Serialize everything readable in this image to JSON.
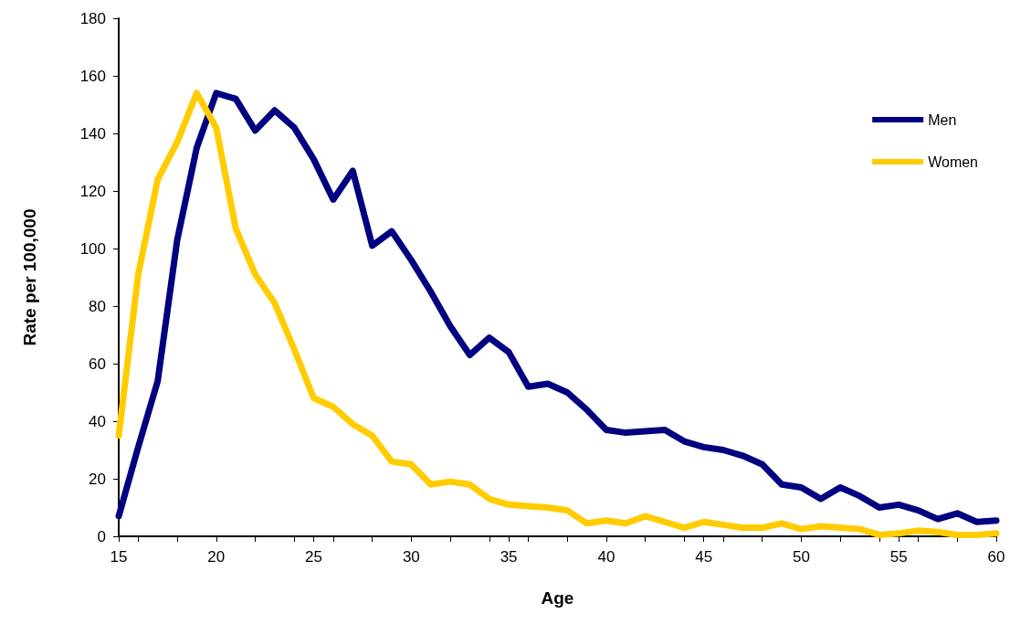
{
  "chart_data": {
    "type": "line",
    "xlabel": "Age",
    "ylabel": "Rate per 100,000",
    "x": [
      15,
      16,
      17,
      18,
      19,
      20,
      21,
      22,
      23,
      24,
      25,
      26,
      27,
      28,
      29,
      30,
      31,
      32,
      33,
      34,
      35,
      36,
      37,
      38,
      39,
      40,
      41,
      42,
      43,
      44,
      45,
      46,
      47,
      48,
      49,
      50,
      51,
      52,
      53,
      54,
      55,
      56,
      57,
      58,
      59,
      60
    ],
    "series": [
      {
        "name": "Men",
        "color": "#000080",
        "values": [
          7,
          31,
          54,
          103,
          135,
          154,
          152,
          141,
          148,
          142,
          131,
          117,
          127,
          101,
          106,
          96,
          85,
          73,
          63,
          69,
          64,
          52,
          53,
          50,
          44,
          37,
          36,
          36.5,
          37,
          33,
          31,
          30,
          28,
          25,
          18,
          17,
          13,
          17,
          14,
          10,
          11,
          9,
          6,
          8,
          5,
          5.5
        ]
      },
      {
        "name": "Women",
        "color": "#ffcc00",
        "values": [
          35,
          91,
          124,
          137,
          154,
          142,
          107,
          91,
          81,
          65,
          48,
          45,
          39,
          35,
          26,
          25,
          18,
          19,
          18,
          13,
          11,
          10.5,
          10,
          9,
          4.5,
          5.5,
          4.5,
          7,
          5,
          3,
          5,
          4,
          3,
          3,
          4.5,
          2.5,
          3.5,
          3,
          2.5,
          0.5,
          1,
          2,
          1.5,
          0.5,
          0.5,
          1
        ]
      }
    ],
    "xlim": [
      15,
      60
    ],
    "xticks": [
      15,
      20,
      25,
      30,
      35,
      40,
      45,
      50,
      55,
      60
    ],
    "ylim": [
      0,
      180
    ],
    "yticks": [
      0,
      20,
      40,
      60,
      80,
      100,
      120,
      140,
      160,
      180
    ],
    "grid": false,
    "legend": "top right",
    "marker": "none",
    "line_style": "solid"
  }
}
